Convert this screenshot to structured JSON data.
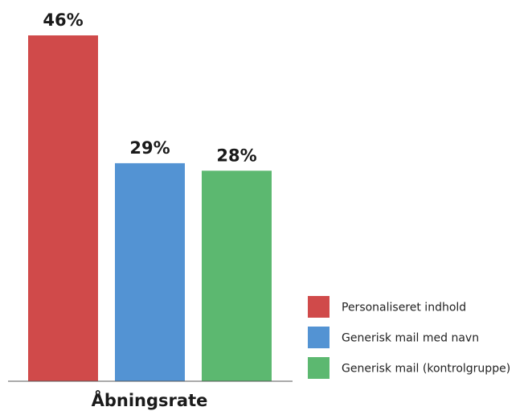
{
  "chart_data": {
    "type": "bar",
    "categories": [
      "Åbningsrate"
    ],
    "series": [
      {
        "name": "Personaliseret indhold",
        "values": [
          46
        ],
        "label": "46%",
        "color": "#d04a4a"
      },
      {
        "name": "Generisk mail med navn",
        "values": [
          29
        ],
        "label": "29%",
        "color": "#5393d3"
      },
      {
        "name": "Generisk mail (kontrolgruppe)",
        "values": [
          28
        ],
        "label": "28%",
        "color": "#5cb870"
      }
    ],
    "title": "",
    "xlabel": "",
    "ylabel": "",
    "ylim": [
      0,
      46
    ],
    "grid": false,
    "legend_position": "bottom-right"
  }
}
